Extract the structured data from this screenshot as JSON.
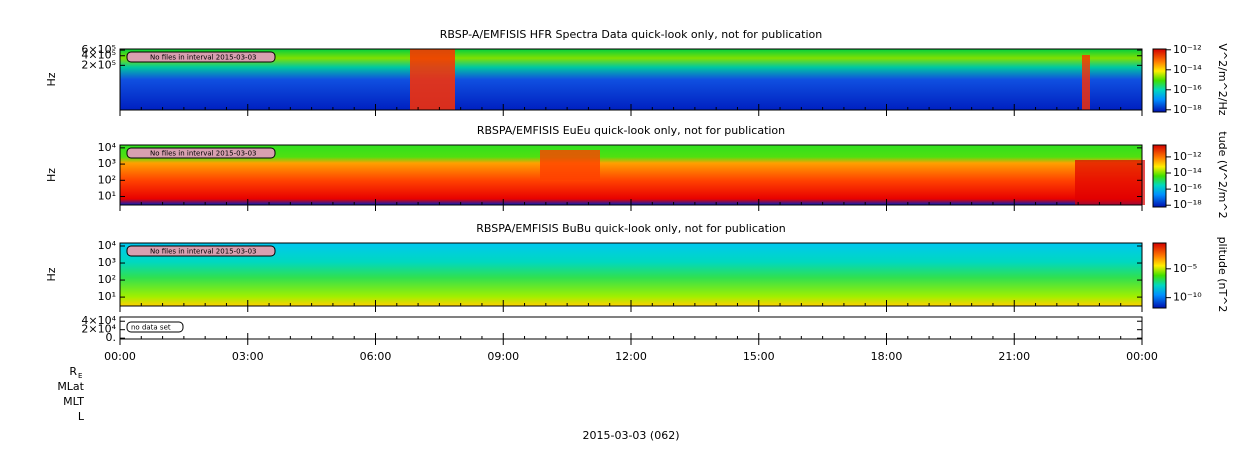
{
  "chart_data": [
    {
      "type": "spectrogram",
      "title": "RBSP-A/EMFISIS  HFR Spectra Data quick-look only, not for publication",
      "ylabel": "Hz",
      "log": true,
      "ylim": [
        8000,
        650000
      ],
      "yticks": [
        {
          "value": 600000,
          "label": "6×10⁵"
        },
        {
          "value": 400000,
          "label": "4×10⁵"
        },
        {
          "value": 200000,
          "label": "2×10⁵"
        }
      ],
      "zlabel": "V^2/m^2/Hz",
      "zlim": [
        6e-19,
        1.2e-12
      ],
      "zticks": [
        {
          "value": 1e-12,
          "label": "10⁻¹²"
        },
        {
          "value": 1e-14,
          "label": "10⁻¹⁴"
        },
        {
          "value": 1e-16,
          "label": "10⁻¹⁶"
        },
        {
          "value": 1e-18,
          "label": "10⁻¹⁸"
        }
      ],
      "notice": "No files in interval 2015-03-03"
    },
    {
      "type": "spectrogram",
      "title": "RBSPA/EMFISIS  EuEu quick-look only, not for publication",
      "ylabel": "Hz",
      "log": true,
      "ylim": [
        3,
        15000
      ],
      "yticks": [
        {
          "value": 10000,
          "label": "10⁴"
        },
        {
          "value": 1000,
          "label": "10³"
        },
        {
          "value": 100,
          "label": "10²"
        },
        {
          "value": 10,
          "label": "10¹"
        }
      ],
      "zlabel": "tude (V^2/m^2",
      "zlim": [
        6e-19,
        3e-11
      ],
      "zticks": [
        {
          "value": 1e-12,
          "label": "10⁻¹²"
        },
        {
          "value": 1e-14,
          "label": "10⁻¹⁴"
        },
        {
          "value": 1e-16,
          "label": "10⁻¹⁶"
        },
        {
          "value": 1e-18,
          "label": "10⁻¹⁸"
        }
      ],
      "notice": "No files in interval 2015-03-03"
    },
    {
      "type": "spectrogram",
      "title": "RBSPA/EMFISIS  BuBu quick-look only, not for publication",
      "ylabel": "Hz",
      "log": true,
      "ylim": [
        3,
        15000
      ],
      "yticks": [
        {
          "value": 10000,
          "label": "10⁴"
        },
        {
          "value": 1000,
          "label": "10³"
        },
        {
          "value": 100,
          "label": "10²"
        },
        {
          "value": 10,
          "label": "10¹"
        }
      ],
      "zlabel": "plitude (nT^2",
      "zlim": [
        1.6e-12,
        0.3
      ],
      "zticks": [
        {
          "value": 1e-05,
          "label": "10⁻⁵"
        },
        {
          "value": 1e-10,
          "label": "10⁻¹⁰"
        }
      ],
      "notice": "No files in interval 2015-03-03"
    },
    {
      "type": "empty",
      "log": false,
      "ylim": [
        -2000,
        50000
      ],
      "yticks": [
        {
          "value": 40000,
          "label": "4×10⁴"
        },
        {
          "value": 20000,
          "label": "2×10⁴"
        },
        {
          "value": 0,
          "label": "0."
        }
      ],
      "notice": "no data set",
      "xlim": [
        0,
        24
      ],
      "xticks": [
        {
          "value": 0,
          "label": "00:00"
        },
        {
          "value": 3,
          "label": "03:00"
        },
        {
          "value": 6,
          "label": "06:00"
        },
        {
          "value": 9,
          "label": "09:00"
        },
        {
          "value": 12,
          "label": "12:00"
        },
        {
          "value": 15,
          "label": "15:00"
        },
        {
          "value": 18,
          "label": "18:00"
        },
        {
          "value": 21,
          "label": "21:00"
        },
        {
          "value": 24,
          "label": "00:00"
        }
      ],
      "ephemeris": [
        {
          "text": "R",
          "sub": "E"
        },
        {
          "text": "MLat"
        },
        {
          "text": "MLT"
        },
        {
          "text": "L"
        }
      ],
      "xlabel": "2015-03-03 (062)"
    }
  ]
}
